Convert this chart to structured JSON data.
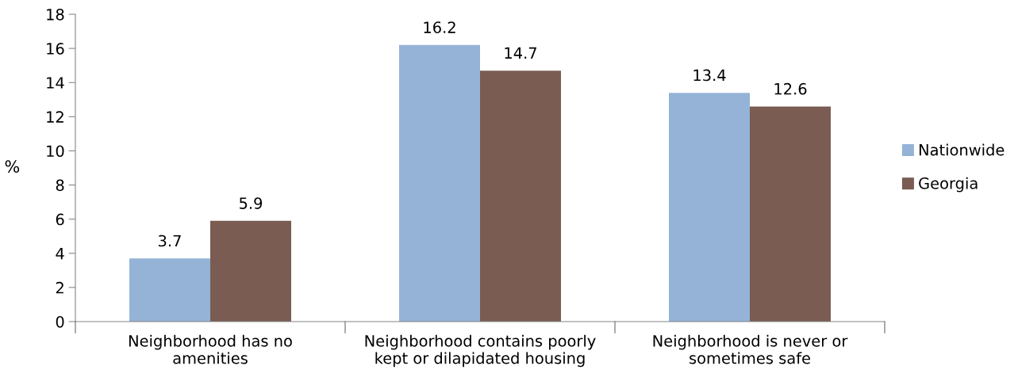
{
  "chart_data": {
    "type": "bar",
    "ylabel": "%",
    "categories": [
      "Neighborhood has no amenities",
      "Neighborhood contains poorly kept or dilapidated housing",
      "Neighborhood is never or sometimes safe"
    ],
    "series": [
      {
        "name": "Nationwide",
        "color": "#95b3d7",
        "values": [
          3.7,
          16.2,
          13.4
        ]
      },
      {
        "name": "Georgia",
        "color": "#7a5c52",
        "values": [
          5.9,
          14.7,
          12.6
        ]
      }
    ],
    "ylim": [
      0,
      18
    ],
    "yticks": [
      0,
      2,
      4,
      6,
      8,
      10,
      12,
      14,
      16,
      18
    ],
    "grid": false,
    "legend": "right",
    "data_labels": true
  }
}
